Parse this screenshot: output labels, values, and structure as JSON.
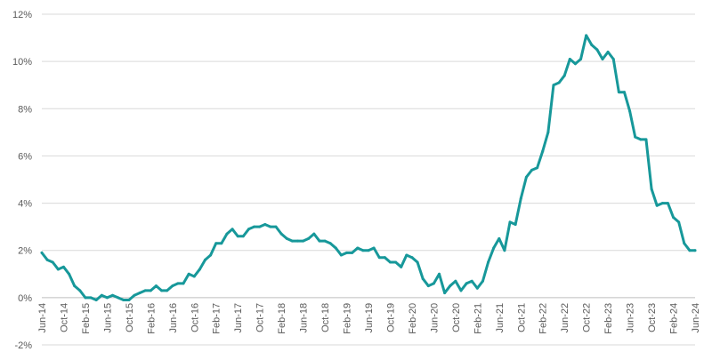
{
  "chart_data": {
    "type": "line",
    "title": "",
    "xlabel": "",
    "ylabel": "",
    "ylim": [
      -2,
      12
    ],
    "y_ticks": [
      -2,
      0,
      2,
      4,
      6,
      8,
      10,
      12
    ],
    "y_tick_labels": [
      "-2%",
      "0%",
      "2%",
      "4%",
      "6%",
      "8%",
      "10%",
      "12%"
    ],
    "x_tick_labels": [
      "Jun-14",
      "Oct-14",
      "Feb-15",
      "Jun-15",
      "Oct-15",
      "Feb-16",
      "Jun-16",
      "Oct-16",
      "Feb-17",
      "Jun-17",
      "Oct-17",
      "Feb-18",
      "Jun-18",
      "Oct-18",
      "Feb-19",
      "Jun-19",
      "Oct-19",
      "Feb-20",
      "Jun-20",
      "Oct-20",
      "Feb-21",
      "Jun-21",
      "Oct-21",
      "Feb-22",
      "Jun-22",
      "Oct-22",
      "Feb-23",
      "Jun-23",
      "Oct-23",
      "Feb-24",
      "Jun-24"
    ],
    "grid": true,
    "legend": "none",
    "color": "#17989a",
    "series": [
      {
        "x": [
          "Jun-14",
          "Jul-14",
          "Aug-14",
          "Sep-14",
          "Oct-14",
          "Nov-14",
          "Dec-14",
          "Jan-15",
          "Feb-15",
          "Mar-15",
          "Apr-15",
          "May-15",
          "Jun-15",
          "Jul-15",
          "Aug-15",
          "Sep-15",
          "Oct-15",
          "Nov-15",
          "Dec-15",
          "Jan-16",
          "Feb-16",
          "Mar-16",
          "Apr-16",
          "May-16",
          "Jun-16",
          "Jul-16",
          "Aug-16",
          "Sep-16",
          "Oct-16",
          "Nov-16",
          "Dec-16",
          "Jan-17",
          "Feb-17",
          "Mar-17",
          "Apr-17",
          "May-17",
          "Jun-17",
          "Jul-17",
          "Aug-17",
          "Sep-17",
          "Oct-17",
          "Nov-17",
          "Dec-17",
          "Jan-18",
          "Feb-18",
          "Mar-18",
          "Apr-18",
          "May-18",
          "Jun-18",
          "Jul-18",
          "Aug-18",
          "Sep-18",
          "Oct-18",
          "Nov-18",
          "Dec-18",
          "Jan-19",
          "Feb-19",
          "Mar-19",
          "Apr-19",
          "May-19",
          "Jun-19",
          "Jul-19",
          "Aug-19",
          "Sep-19",
          "Oct-19",
          "Nov-19",
          "Dec-19",
          "Jan-20",
          "Feb-20",
          "Mar-20",
          "Apr-20",
          "May-20",
          "Jun-20",
          "Jul-20",
          "Aug-20",
          "Sep-20",
          "Oct-20",
          "Nov-20",
          "Dec-20",
          "Jan-21",
          "Feb-21",
          "Mar-21",
          "Apr-21",
          "May-21",
          "Jun-21",
          "Jul-21",
          "Aug-21",
          "Sep-21",
          "Oct-21",
          "Nov-21",
          "Dec-21",
          "Jan-22",
          "Feb-22",
          "Mar-22",
          "Apr-22",
          "May-22",
          "Jun-22",
          "Jul-22",
          "Aug-22",
          "Sep-22",
          "Oct-22",
          "Nov-22",
          "Dec-22",
          "Jan-23",
          "Feb-23",
          "Mar-23",
          "Apr-23",
          "May-23",
          "Jun-23",
          "Jul-23",
          "Aug-23",
          "Sep-23",
          "Oct-23",
          "Nov-23",
          "Dec-23",
          "Jan-24",
          "Feb-24",
          "Mar-24",
          "Apr-24",
          "May-24",
          "Jun-24"
        ],
        "values": [
          1.9,
          1.6,
          1.5,
          1.2,
          1.3,
          1.0,
          0.5,
          0.3,
          0.0,
          0.0,
          -0.1,
          0.1,
          0.0,
          0.1,
          0.0,
          -0.1,
          -0.1,
          0.1,
          0.2,
          0.3,
          0.3,
          0.5,
          0.3,
          0.3,
          0.5,
          0.6,
          0.6,
          1.0,
          0.9,
          1.2,
          1.6,
          1.8,
          2.3,
          2.3,
          2.7,
          2.9,
          2.6,
          2.6,
          2.9,
          3.0,
          3.0,
          3.1,
          3.0,
          3.0,
          2.7,
          2.5,
          2.4,
          2.4,
          2.4,
          2.5,
          2.7,
          2.4,
          2.4,
          2.3,
          2.1,
          1.8,
          1.9,
          1.9,
          2.1,
          2.0,
          2.0,
          2.1,
          1.7,
          1.7,
          1.5,
          1.5,
          1.3,
          1.8,
          1.7,
          1.5,
          0.8,
          0.5,
          0.6,
          1.0,
          0.2,
          0.5,
          0.7,
          0.3,
          0.6,
          0.7,
          0.4,
          0.7,
          1.5,
          2.1,
          2.5,
          2.0,
          3.2,
          3.1,
          4.2,
          5.1,
          5.4,
          5.5,
          6.2,
          7.0,
          9.0,
          9.1,
          9.4,
          10.1,
          9.9,
          10.1,
          11.1,
          10.7,
          10.5,
          10.1,
          10.4,
          10.1,
          8.7,
          8.7,
          7.9,
          6.8,
          6.7,
          6.7,
          4.6,
          3.9,
          4.0,
          4.0,
          3.4,
          3.2,
          2.3,
          2.0,
          2.0
        ]
      }
    ]
  }
}
